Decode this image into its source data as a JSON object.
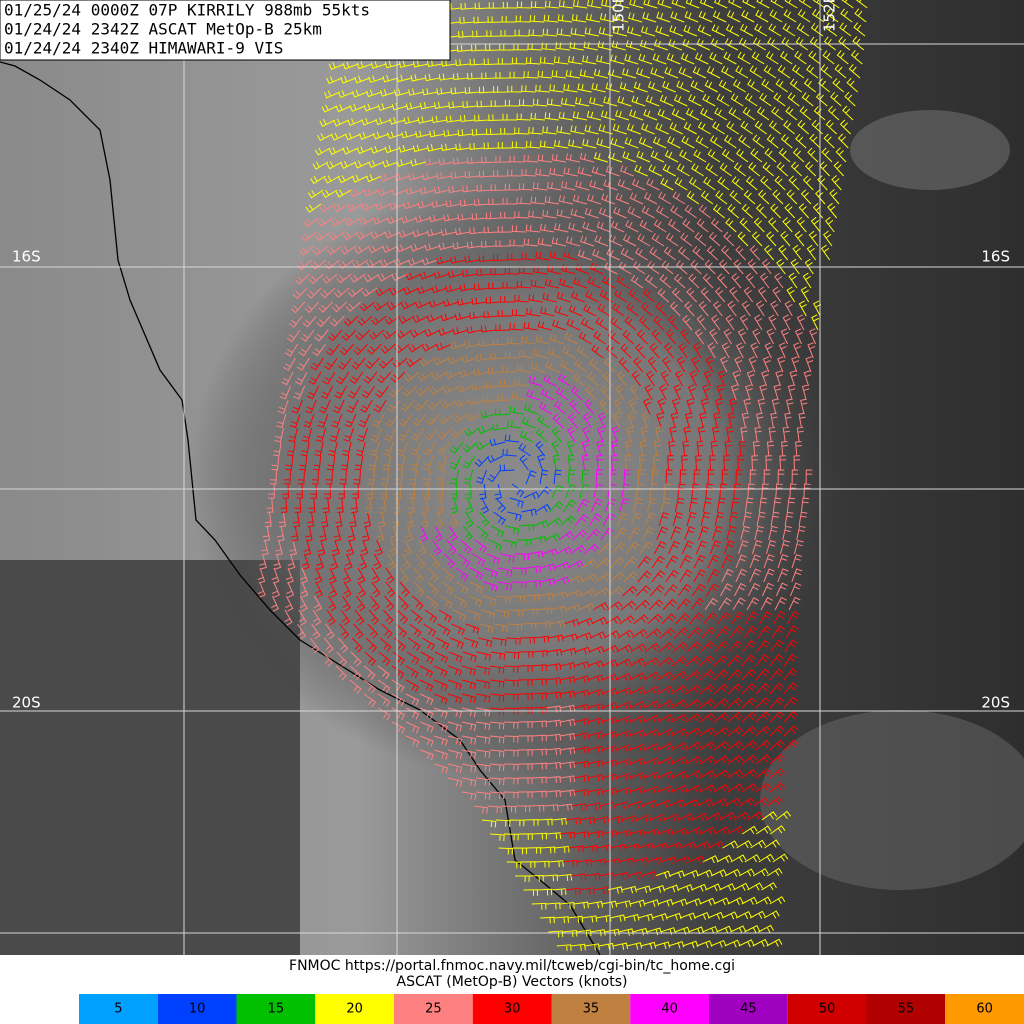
{
  "header": {
    "lines": [
      "01/25/24 0000Z  07P KIRRILY 988mb 55kts",
      "01/24/24 2342Z  ASCAT MetOp-B 25km",
      "01/24/24 2340Z  HIMAWARI-9 VIS"
    ]
  },
  "grid": {
    "latitudes": [
      "16S",
      "20S"
    ],
    "longitudes": [
      "150E",
      "152E"
    ]
  },
  "footer": {
    "source": "FNMOC https://portal.fnmoc.navy.mil/tcweb/cgi-bin/tc_home.cgi",
    "caption": "ASCAT (MetOp-B) Vectors (knots)"
  },
  "legend": [
    {
      "value": 5,
      "color": "#00a0ff"
    },
    {
      "value": 10,
      "color": "#0040ff"
    },
    {
      "value": 15,
      "color": "#00c000"
    },
    {
      "value": 20,
      "color": "#ffff00"
    },
    {
      "value": 25,
      "color": "#ff8080"
    },
    {
      "value": 30,
      "color": "#ff0000"
    },
    {
      "value": 35,
      "color": "#c08040"
    },
    {
      "value": 40,
      "color": "#ff00ff"
    },
    {
      "value": 45,
      "color": "#a000c0"
    },
    {
      "value": 50,
      "color": "#d00000"
    },
    {
      "value": 55,
      "color": "#b00000"
    },
    {
      "value": 60,
      "color": "#ff9900"
    }
  ]
}
